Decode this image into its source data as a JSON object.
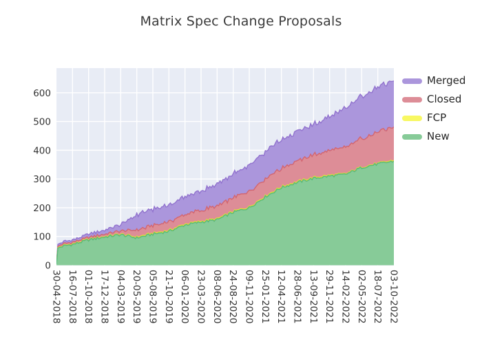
{
  "title": "Matrix Spec Change Proposals",
  "legend": {
    "items": [
      {
        "label": "Merged",
        "color": "#ab96dc"
      },
      {
        "label": "Closed",
        "color": "#dd8d97"
      },
      {
        "label": "FCP",
        "color": "#f8f862"
      },
      {
        "label": "New",
        "color": "#87cb98"
      }
    ]
  },
  "chart_data": {
    "type": "area",
    "stacked": true,
    "title": "Matrix Spec Change Proposals",
    "xlabel": "",
    "ylabel": "",
    "grid": true,
    "legend_position": "outside-top-right",
    "plot_background": "#e8ecf5",
    "grid_color": "#ffffff",
    "ylim": [
      0,
      686
    ],
    "y_ticks": [
      0,
      100,
      200,
      300,
      400,
      500,
      600
    ],
    "categories": [
      "30-04-2018",
      "16-07-2018",
      "01-10-2018",
      "17-12-2018",
      "04-03-2019",
      "20-05-2019",
      "05-08-2019",
      "21-10-2019",
      "06-01-2020",
      "23-03-2020",
      "08-06-2020",
      "24-08-2020",
      "09-11-2020",
      "25-01-2021",
      "12-04-2021",
      "28-06-2021",
      "13-09-2021",
      "29-11-2021",
      "14-02-2022",
      "02-05-2022",
      "18-07-2022",
      "03-10-2022"
    ],
    "series": [
      {
        "name": "New",
        "fill": "#87cb98",
        "line": "#57b879",
        "values": [
          4,
          72,
          88,
          98,
          106,
          95,
          108,
          118,
          140,
          150,
          158,
          184,
          200,
          238,
          270,
          288,
          302,
          310,
          316,
          340,
          352,
          362
        ]
      },
      {
        "name": "FCP",
        "fill": "#f8f862",
        "line": "#e3e332",
        "values": [
          0,
          2,
          2,
          2,
          2,
          3,
          3,
          3,
          3,
          3,
          3,
          3,
          3,
          3,
          3,
          3,
          3,
          3,
          2,
          2,
          2,
          3
        ]
      },
      {
        "name": "Closed",
        "fill": "#dd8d97",
        "line": "#d3656f",
        "values": [
          1,
          6,
          7,
          8,
          12,
          24,
          26,
          30,
          33,
          38,
          45,
          48,
          52,
          58,
          64,
          72,
          79,
          86,
          92,
          100,
          108,
          116
        ]
      },
      {
        "name": "Merged",
        "fill": "#ab96dc",
        "line": "#9172ce",
        "values": [
          1,
          8,
          11,
          14,
          22,
          54,
          56,
          59,
          62,
          68,
          74,
          82,
          92,
          96,
          100,
          102,
          104,
          118,
          134,
          148,
          156,
          160
        ]
      }
    ]
  }
}
